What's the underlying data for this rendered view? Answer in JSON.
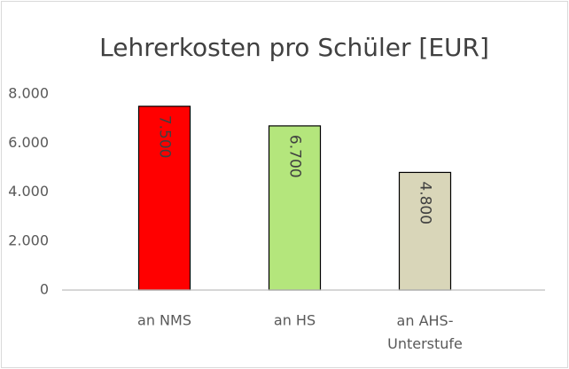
{
  "chart_data": {
    "type": "bar",
    "title": "Lehrerkosten pro Schüler [EUR]",
    "categories": [
      "an NMS",
      "an HS",
      "an AHS-\nUnterstufe"
    ],
    "values": [
      7500,
      6700,
      4800
    ],
    "value_labels": [
      "7.500",
      "6.700",
      "4.800"
    ],
    "colors": [
      "#ff0000",
      "#b4e67c",
      "#d9d6b9"
    ],
    "ylim": [
      0,
      8000
    ],
    "yticks": [
      0,
      {
        "value": 2000,
        "label": "2.000"
      },
      {
        "value": 4000,
        "label": "4.000"
      },
      {
        "value": 6000,
        "label": "6.000"
      },
      {
        "value": 8000,
        "label": "8.000"
      }
    ],
    "grid": false
  }
}
